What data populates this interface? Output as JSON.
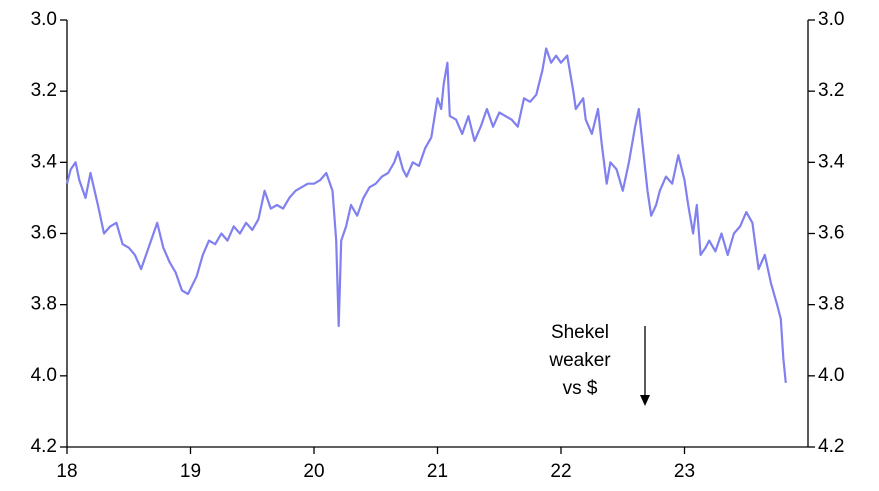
{
  "chart_data": {
    "type": "line",
    "x": [
      2018.0,
      2018.03,
      2018.07,
      2018.1,
      2018.15,
      2018.19,
      2018.25,
      2018.3,
      2018.35,
      2018.4,
      2018.45,
      2018.5,
      2018.55,
      2018.6,
      2018.65,
      2018.7,
      2018.73,
      2018.78,
      2018.83,
      2018.88,
      2018.93,
      2018.98,
      2019.05,
      2019.1,
      2019.15,
      2019.2,
      2019.25,
      2019.3,
      2019.35,
      2019.4,
      2019.45,
      2019.5,
      2019.55,
      2019.6,
      2019.65,
      2019.7,
      2019.75,
      2019.8,
      2019.85,
      2019.9,
      2019.95,
      2020.0,
      2020.05,
      2020.1,
      2020.15,
      2020.18,
      2020.2,
      2020.22,
      2020.26,
      2020.3,
      2020.35,
      2020.4,
      2020.45,
      2020.5,
      2020.55,
      2020.6,
      2020.65,
      2020.68,
      2020.72,
      2020.75,
      2020.8,
      2020.85,
      2020.9,
      2020.95,
      2021.0,
      2021.03,
      2021.05,
      2021.08,
      2021.1,
      2021.15,
      2021.2,
      2021.25,
      2021.3,
      2021.35,
      2021.4,
      2021.45,
      2021.5,
      2021.55,
      2021.6,
      2021.65,
      2021.7,
      2021.75,
      2021.8,
      2021.85,
      2021.88,
      2021.92,
      2021.96,
      2022.0,
      2022.05,
      2022.1,
      2022.12,
      2022.18,
      2022.2,
      2022.25,
      2022.3,
      2022.33,
      2022.37,
      2022.4,
      2022.45,
      2022.5,
      2022.55,
      2022.6,
      2022.63,
      2022.67,
      2022.7,
      2022.73,
      2022.77,
      2022.8,
      2022.85,
      2022.9,
      2022.95,
      2023.0,
      2023.03,
      2023.07,
      2023.1,
      2023.13,
      2023.17,
      2023.2,
      2023.25,
      2023.3,
      2023.35,
      2023.4,
      2023.45,
      2023.5,
      2023.55,
      2023.6,
      2023.65,
      2023.7,
      2023.75,
      2023.78,
      2023.8,
      2023.82
    ],
    "series": [
      {
        "color": "#8080f0",
        "values": [
          3.46,
          3.42,
          3.4,
          3.45,
          3.5,
          3.43,
          3.52,
          3.6,
          3.58,
          3.57,
          3.63,
          3.64,
          3.66,
          3.7,
          3.65,
          3.6,
          3.57,
          3.64,
          3.68,
          3.71,
          3.76,
          3.77,
          3.72,
          3.66,
          3.62,
          3.63,
          3.6,
          3.62,
          3.58,
          3.6,
          3.57,
          3.59,
          3.56,
          3.48,
          3.53,
          3.52,
          3.53,
          3.5,
          3.48,
          3.47,
          3.46,
          3.46,
          3.45,
          3.43,
          3.48,
          3.62,
          3.86,
          3.62,
          3.58,
          3.52,
          3.55,
          3.5,
          3.47,
          3.46,
          3.44,
          3.43,
          3.4,
          3.37,
          3.42,
          3.44,
          3.4,
          3.41,
          3.36,
          3.33,
          3.22,
          3.25,
          3.18,
          3.12,
          3.27,
          3.28,
          3.32,
          3.27,
          3.34,
          3.3,
          3.25,
          3.3,
          3.26,
          3.27,
          3.28,
          3.3,
          3.22,
          3.23,
          3.21,
          3.14,
          3.08,
          3.12,
          3.1,
          3.12,
          3.1,
          3.2,
          3.25,
          3.22,
          3.28,
          3.32,
          3.25,
          3.35,
          3.46,
          3.4,
          3.42,
          3.48,
          3.4,
          3.3,
          3.25,
          3.38,
          3.48,
          3.55,
          3.52,
          3.48,
          3.44,
          3.46,
          3.38,
          3.45,
          3.52,
          3.6,
          3.52,
          3.66,
          3.64,
          3.62,
          3.65,
          3.6,
          3.66,
          3.6,
          3.58,
          3.54,
          3.57,
          3.7,
          3.66,
          3.74,
          3.8,
          3.84,
          3.95,
          4.02
        ]
      }
    ],
    "xlim": [
      2018,
      2024
    ],
    "xticks": [
      {
        "value": 2018,
        "label": "18"
      },
      {
        "value": 2019,
        "label": "19"
      },
      {
        "value": 2020,
        "label": "20"
      },
      {
        "value": 2021,
        "label": "21"
      },
      {
        "value": 2022,
        "label": "22"
      },
      {
        "value": 2023,
        "label": "23"
      }
    ],
    "ylim": [
      4.2,
      3.0
    ],
    "yticks": [
      {
        "value": 3,
        "label": "3.0"
      },
      3.2,
      3.4,
      3.6,
      3.8,
      {
        "value": 4,
        "label": "4.0"
      },
      4.2
    ],
    "y2lim": [
      4.2,
      3.0
    ],
    "y2ticks": [
      {
        "value": 3,
        "label": "3.0"
      },
      3.2,
      3.4,
      3.6,
      3.8,
      {
        "value": 4,
        "label": "4.0"
      },
      4.2
    ],
    "annotation": [
      "Shekel",
      "weaker",
      "vs $"
    ]
  }
}
